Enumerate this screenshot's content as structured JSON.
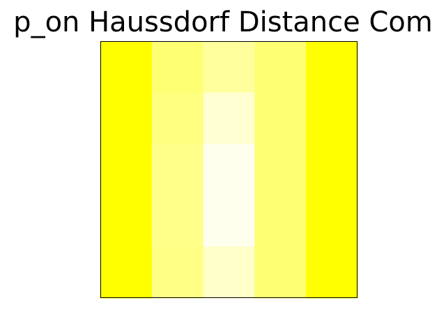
{
  "chart_data": {
    "type": "heatmap",
    "title": "p_on Haussdorf Distance Com",
    "xlabel": "",
    "ylabel": "",
    "rows": 5,
    "cols": 5,
    "grid": false,
    "colormap_low": "#ffffff",
    "colormap_high": "#ffff00",
    "values": [
      [
        1.0,
        0.55,
        0.38,
        0.55,
        1.0
      ],
      [
        1.0,
        0.5,
        0.18,
        0.55,
        1.0
      ],
      [
        1.0,
        0.46,
        0.07,
        0.55,
        1.0
      ],
      [
        1.0,
        0.46,
        0.07,
        0.55,
        1.0
      ],
      [
        1.0,
        0.48,
        0.22,
        0.55,
        1.0
      ]
    ],
    "value_range": [
      0,
      1
    ]
  }
}
